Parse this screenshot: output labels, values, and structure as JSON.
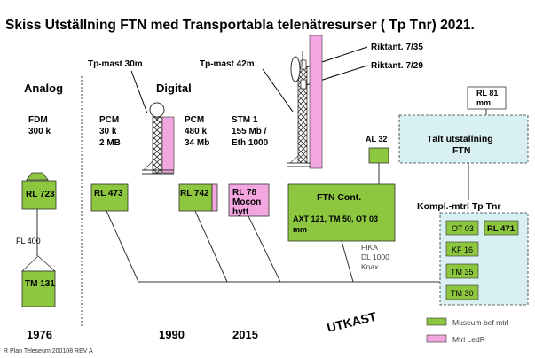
{
  "title": "Skiss Utställning FTN med Transportabla telenätresurser ( Tp Tnr)  2021.",
  "sections": {
    "analog": "Analog",
    "digital": "Digital"
  },
  "masts": {
    "mast30": "Tp-mast 30m",
    "mast42": "Tp-mast 42m"
  },
  "antennas": {
    "a1": "Riktant. 7/35",
    "a2": "Riktant. 7/29"
  },
  "tech": {
    "fdm": [
      "FDM",
      "300 k"
    ],
    "pcm1": [
      "PCM",
      "30 k",
      "2 MB"
    ],
    "pcm2": [
      "PCM",
      "480 k",
      "34 Mb"
    ],
    "stm": [
      "STM 1",
      "155 Mb /",
      "Eth 1000"
    ]
  },
  "units": {
    "rl723": "RL 723",
    "tm131": "TM 131",
    "rl473": "RL 473",
    "rl742": "RL 742",
    "rl78": [
      "RL 78",
      "Mocon",
      "hytt"
    ],
    "ftn_title": "FTN Cont.",
    "ftn_sub": [
      "AXT 121, TM 50, OT 03",
      "mm"
    ],
    "al32": "AL 32",
    "rl81": [
      "RL 81",
      "mm"
    ],
    "tent": [
      "Tält utställning",
      "FTN"
    ]
  },
  "kompl": {
    "title": "Kompl.-mtrl Tp Tnr",
    "items": [
      "OT 03",
      "RL 471",
      "KF 16",
      "TM 35",
      "TM 30"
    ]
  },
  "links": {
    "fl400": "FL 400",
    "fika": [
      "FIKA",
      "DL 1000",
      "Koax"
    ]
  },
  "years": [
    "1976",
    "1990",
    "2015"
  ],
  "watermark": "UTKAST",
  "legend": [
    {
      "label": "Museum bef mtrl",
      "color": "#8dc63f"
    },
    {
      "label": "Mtrl LedR",
      "color": "#f4a6e0"
    }
  ],
  "footer": "R Plan Teleseum 200108 REV A",
  "colors": {
    "green": "#8dc63f",
    "pink": "#f4a6e0",
    "light_cyan": "#d9f0f2",
    "steel": "#7f9fb3"
  }
}
